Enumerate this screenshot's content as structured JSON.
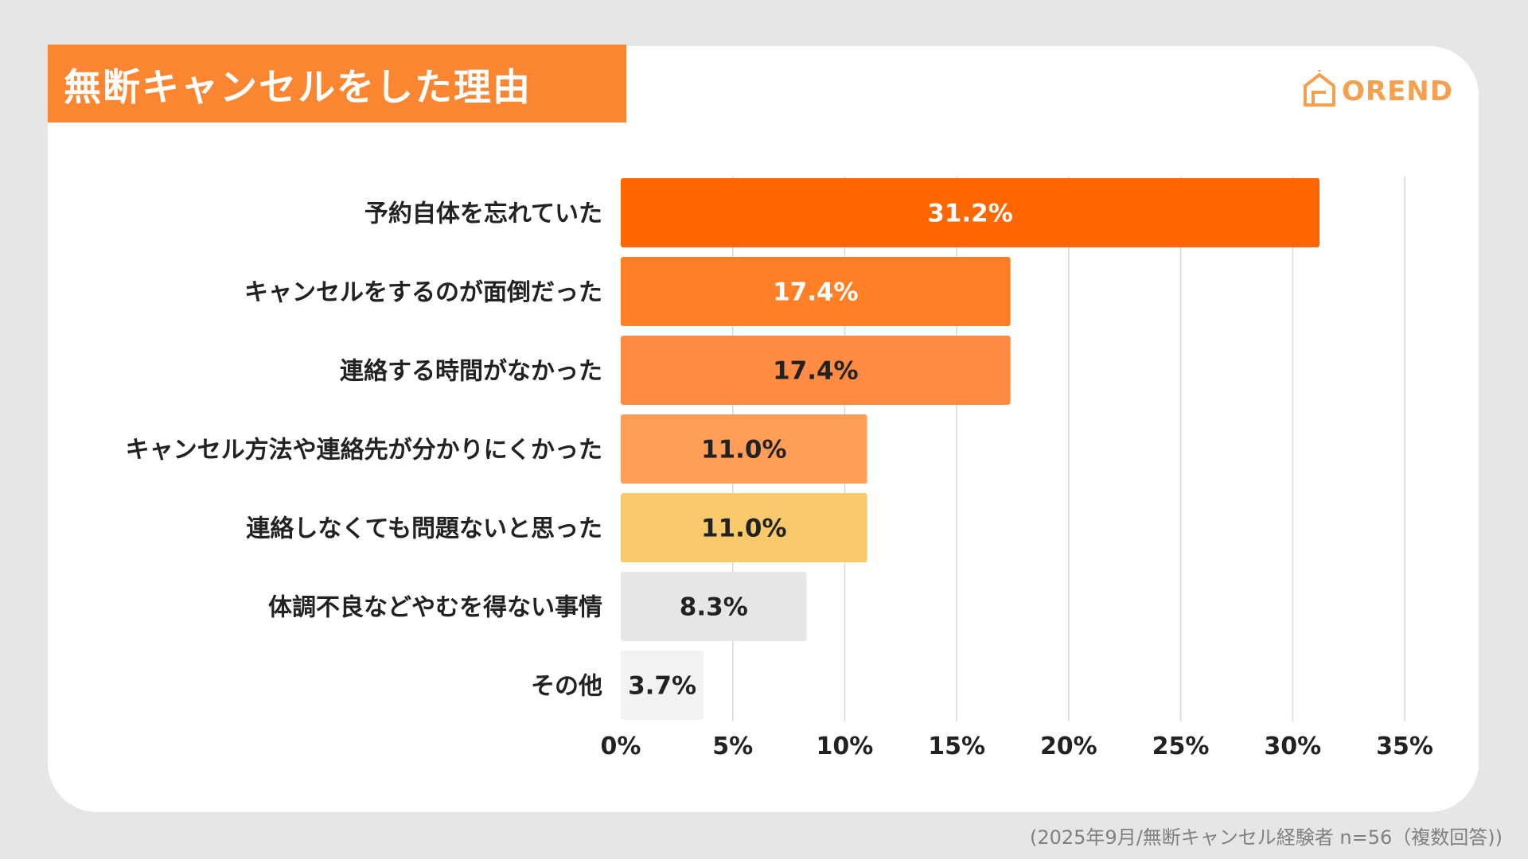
{
  "title": "無断キャンセルをした理由",
  "logo": {
    "text": "OREND",
    "icon": "house-logo-icon"
  },
  "footnote": "(2025年9月/無断キャンセル経験者 n=56（複数回答))",
  "colors": {
    "background": "#e6e6e6",
    "card": "#ffffff",
    "title_bg": "#fb8632",
    "logo": "#f5a04f",
    "grid": "#d9d9d9"
  },
  "chart_data": {
    "type": "bar",
    "orientation": "horizontal",
    "title": "無断キャンセルをした理由",
    "categories": [
      "予約自体を忘れていた",
      "キャンセルをするのが面倒だった",
      "連絡する時間がなかった",
      "キャンセル方法や連絡先が分かりにくかった",
      "連絡しなくても問題ないと思った",
      "体調不良などやむを得ない事情",
      "その他"
    ],
    "values": [
      31.2,
      17.4,
      17.4,
      11.0,
      11.0,
      8.3,
      3.7
    ],
    "value_labels": [
      "31.2%",
      "17.4%",
      "17.4%",
      "11.0%",
      "11.0%",
      "8.3%",
      "3.7%"
    ],
    "bar_colors": [
      "#ff6600",
      "#ff7f27",
      "#ff8c42",
      "#ff9d59",
      "#f7c96b",
      "#e6e6e6",
      "#f2f2f2"
    ],
    "label_colors": [
      "#ffffff",
      "#ffffff",
      "#222222",
      "#222222",
      "#222222",
      "#222222",
      "#222222"
    ],
    "xlim": [
      0,
      35
    ],
    "xticks": [
      0,
      5,
      10,
      15,
      20,
      25,
      30,
      35
    ],
    "xtick_labels": [
      "0%",
      "5%",
      "10%",
      "15%",
      "20%",
      "25%",
      "30%",
      "35%"
    ],
    "grid": true,
    "legend": "none"
  }
}
